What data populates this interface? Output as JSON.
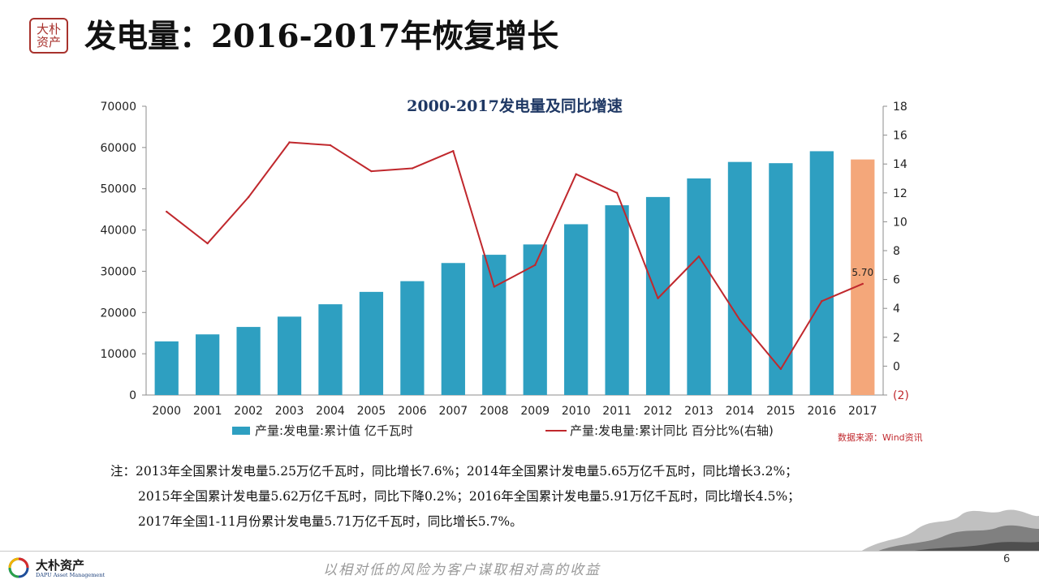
{
  "header": {
    "seal_text": "大朴\n资产",
    "title": "发电量：2016-2017年恢复增长"
  },
  "chart_data": {
    "type": "bar",
    "title": "2000-2017发电量及同比增速",
    "categories": [
      "2000",
      "2001",
      "2002",
      "2003",
      "2004",
      "2005",
      "2006",
      "2007",
      "2008",
      "2009",
      "2010",
      "2011",
      "2012",
      "2013",
      "2014",
      "2015",
      "2016",
      "2017"
    ],
    "series": [
      {
        "name": "产量:发电量:累计值 亿千瓦时",
        "type": "bar",
        "axis": "left",
        "color": "#2e9fc1",
        "highlight_color": "#f4a77a",
        "highlight_index": 17,
        "values": [
          13000,
          14700,
          16500,
          19000,
          22000,
          25000,
          27600,
          32000,
          34000,
          36500,
          41400,
          46000,
          48000,
          52500,
          56500,
          56200,
          59100,
          57100
        ]
      },
      {
        "name": "产量:发电量:累计同比 百分比%(右轴)",
        "type": "line",
        "axis": "right",
        "color": "#c0282d",
        "values": [
          10.7,
          8.5,
          11.7,
          15.5,
          15.3,
          13.5,
          13.7,
          14.9,
          5.5,
          7.0,
          13.3,
          12.0,
          4.7,
          7.6,
          3.2,
          -0.2,
          4.5,
          5.7
        ]
      }
    ],
    "y_left": {
      "ylim": [
        0,
        70000
      ],
      "ticks": [
        "0",
        "10000",
        "20000",
        "30000",
        "40000",
        "50000",
        "60000",
        "70000"
      ]
    },
    "y_right": {
      "ylim": [
        -2,
        18
      ],
      "ticks": [
        "(2)",
        "0",
        "2",
        "4",
        "6",
        "8",
        "10",
        "12",
        "14",
        "16",
        "18"
      ]
    },
    "annotation": {
      "text": "5.70",
      "series_index": 1,
      "point_index": 17
    },
    "grid": false,
    "legend": "bottom",
    "source": "数据来源：Wind资讯"
  },
  "notes": {
    "lines": [
      "注：2013年全国累计发电量5.25万亿千瓦时，同比增长7.6%；2014年全国累计发电量5.65万亿千瓦时，同比增长3.2%；",
      "2015年全国累计发电量5.62万亿千瓦时，同比下降0.2%；2016年全国累计发电量5.91万亿千瓦时，同比增长4.5%；",
      "2017年全国1-11月份累计发电量5.71万亿千瓦时，同比增长5.7%。"
    ]
  },
  "footer": {
    "logo_name": "大朴资产",
    "logo_sub": "DAPU Asset Management",
    "slogan": "以相对低的风险为客户谋取相对高的收益",
    "page_number": "6"
  },
  "colors": {
    "accent_red": "#c0282d",
    "bar_blue": "#2e9fc1",
    "bar_highlight": "#f4a77a",
    "title_navy": "#1f3864"
  }
}
